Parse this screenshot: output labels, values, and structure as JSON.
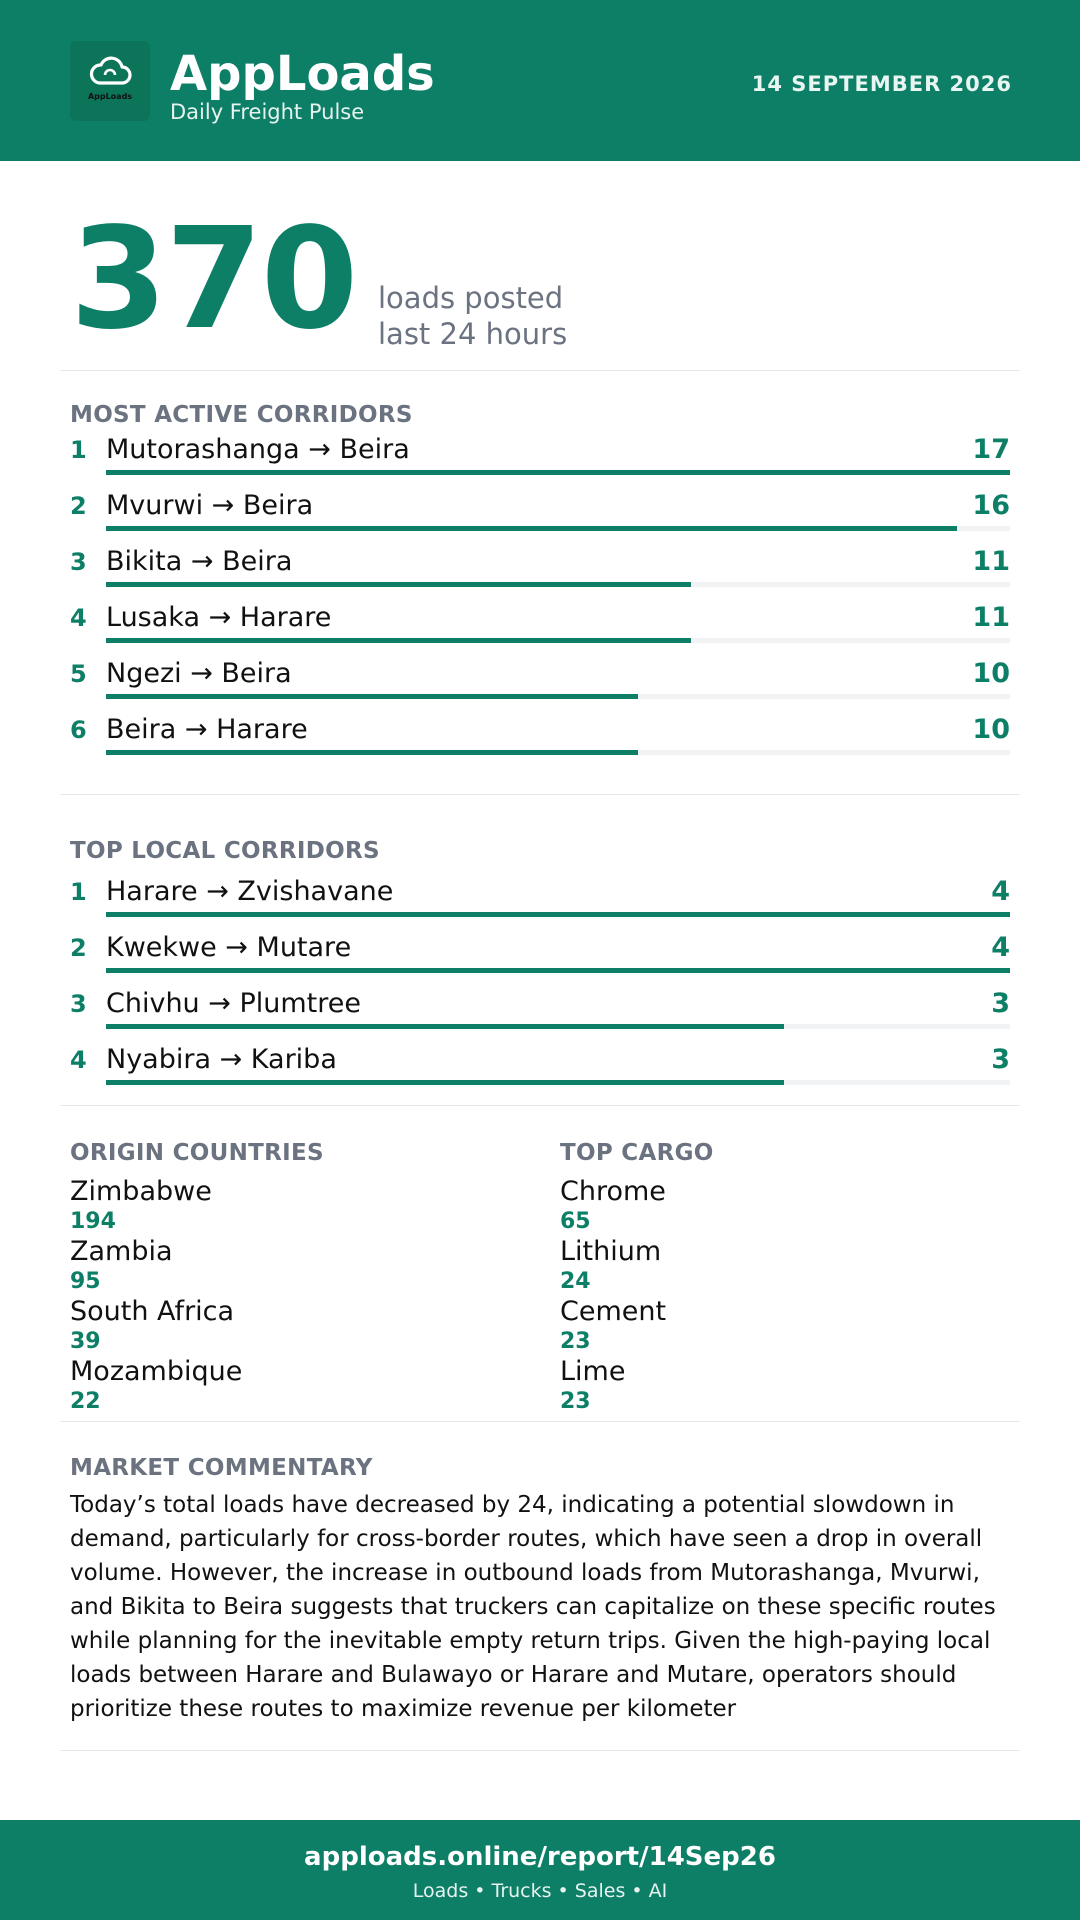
{
  "header": {
    "logo_text": "AppLoads",
    "brand": "AppLoads",
    "tagline": "Daily Freight Pulse",
    "date": "14 SEPTEMBER 2026"
  },
  "summary": {
    "loads_posted": "370",
    "caption_line1": "loads posted",
    "caption_line2": "last 24 hours"
  },
  "most_active": {
    "title": "MOST ACTIVE CORRIDORS",
    "max": 17,
    "items": [
      {
        "rank": "1",
        "route": "Mutorashanga → Beira",
        "count": "17",
        "value": 17
      },
      {
        "rank": "2",
        "route": "Mvurwi → Beira",
        "count": "16",
        "value": 16
      },
      {
        "rank": "3",
        "route": "Bikita → Beira",
        "count": "11",
        "value": 11
      },
      {
        "rank": "4",
        "route": "Lusaka → Harare",
        "count": "11",
        "value": 11
      },
      {
        "rank": "5",
        "route": "Ngezi → Beira",
        "count": "10",
        "value": 10
      },
      {
        "rank": "6",
        "route": "Beira → Harare",
        "count": "10",
        "value": 10
      }
    ]
  },
  "top_local": {
    "title": "TOP LOCAL CORRIDORS",
    "max": 4,
    "items": [
      {
        "rank": "1",
        "route": "Harare → Zvishavane",
        "count": "4",
        "value": 4
      },
      {
        "rank": "2",
        "route": "Kwekwe → Mutare",
        "count": "4",
        "value": 4
      },
      {
        "rank": "3",
        "route": "Chivhu → Plumtree",
        "count": "3",
        "value": 3
      },
      {
        "rank": "4",
        "route": "Nyabira → Kariba",
        "count": "3",
        "value": 3
      }
    ]
  },
  "origin_countries": {
    "title": "ORIGIN COUNTRIES",
    "items": [
      {
        "name": "Zimbabwe",
        "value": "194"
      },
      {
        "name": "Zambia",
        "value": "95"
      },
      {
        "name": "South Africa",
        "value": "39"
      },
      {
        "name": "Mozambique",
        "value": "22"
      }
    ]
  },
  "top_cargo": {
    "title": "TOP CARGO",
    "items": [
      {
        "name": "Chrome",
        "value": "65"
      },
      {
        "name": "Lithium",
        "value": "24"
      },
      {
        "name": "Cement",
        "value": "23"
      },
      {
        "name": "Lime",
        "value": "23"
      }
    ]
  },
  "commentary": {
    "title": "MARKET COMMENTARY",
    "text": "Today’s total loads have decreased by 24, indicating a potential slowdown in demand, particularly for cross-border routes, which have seen a drop in overall volume. However, the increase in outbound loads from Mutorashanga, Mvurwi, and Bikita to Beira suggests that truckers can capitalize on these specific routes while planning for the inevitable empty return trips. Given the high-paying local loads between Harare and Bulawayo or Harare and Mutare, operators should prioritize these routes to maximize revenue per kilometer"
  },
  "footer": {
    "url": "apploads.online/report/14Sep26",
    "sub": "Loads • Trucks • Sales • AI"
  },
  "colors": {
    "brand_green": "#0e7f67",
    "muted_gray": "#6b7280",
    "track_gray": "#f1f2f4"
  }
}
